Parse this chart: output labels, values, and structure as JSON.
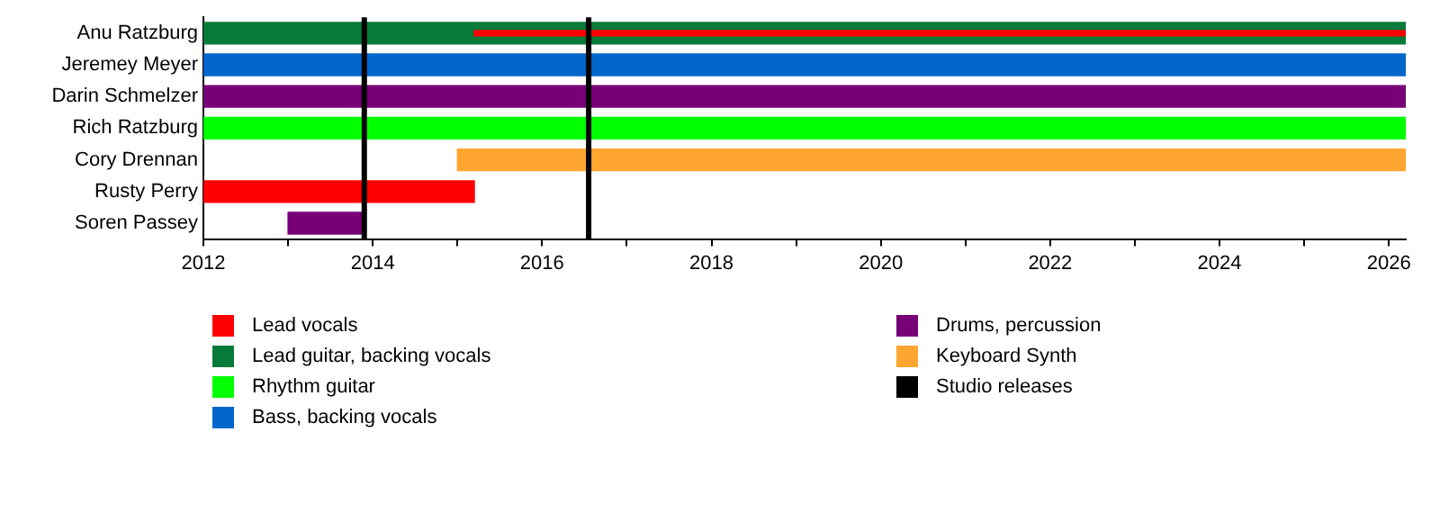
{
  "chart_data": {
    "type": "bar",
    "orientation": "horizontal",
    "categories": [
      "Anu Ratzburg",
      "Jeremey Meyer",
      "Darin Schmelzer",
      "Rich Ratzburg",
      "Cory Drennan",
      "Rusty Perry",
      "Soren Passey"
    ],
    "series": [
      {
        "name": "Lead vocals",
        "color": "#ff0000",
        "base": [
          2015.2,
          null,
          null,
          null,
          null,
          2012,
          null
        ],
        "values": [
          11.0,
          null,
          null,
          null,
          null,
          3.2,
          null
        ]
      },
      {
        "name": "Lead guitar, backing vocals",
        "color": "#077a3a",
        "base": [
          2012,
          null,
          null,
          null,
          null,
          null,
          null
        ],
        "values": [
          14.2,
          null,
          null,
          null,
          null,
          null,
          null
        ]
      },
      {
        "name": "Rhythm guitar",
        "color": "#00ff00",
        "base": [
          null,
          null,
          null,
          2012,
          null,
          null,
          null
        ],
        "values": [
          null,
          null,
          null,
          14.2,
          null,
          null,
          null
        ]
      },
      {
        "name": "Bass, backing vocals",
        "color": "#0066cc",
        "base": [
          null,
          2012,
          null,
          null,
          null,
          null,
          null
        ],
        "values": [
          null,
          14.2,
          null,
          null,
          null,
          null,
          null
        ]
      },
      {
        "name": "Drums, percussion",
        "color": "#770077",
        "base": [
          null,
          null,
          2012,
          null,
          null,
          null,
          2013
        ],
        "values": [
          null,
          null,
          14.2,
          null,
          null,
          null,
          0.9
        ]
      },
      {
        "name": "Keyboard Synth",
        "color": "#ffa630",
        "base": [
          null,
          null,
          null,
          null,
          2015,
          null,
          null
        ],
        "values": [
          null,
          null,
          null,
          null,
          11.2,
          null,
          null
        ]
      }
    ],
    "xlim": [
      2012,
      2026.2
    ],
    "xticks": [
      2012,
      {
        "value": 2013,
        "label": null
      },
      2014,
      {
        "value": 2015,
        "label": null
      },
      2016,
      {
        "value": 2017,
        "label": null
      },
      2018,
      {
        "value": 2019,
        "label": null
      },
      2020,
      {
        "value": 2021,
        "label": null
      },
      2022,
      {
        "value": 2023,
        "label": null
      },
      2024,
      {
        "value": 2025,
        "label": null
      },
      2026
    ],
    "ref_lines": [
      {
        "axis": "x",
        "value": 2013.9,
        "label": "Studio releases",
        "color": "#000000"
      },
      {
        "axis": "x",
        "value": 2016.55,
        "color": "#000000"
      }
    ],
    "grid": false,
    "legend": "bottom"
  }
}
